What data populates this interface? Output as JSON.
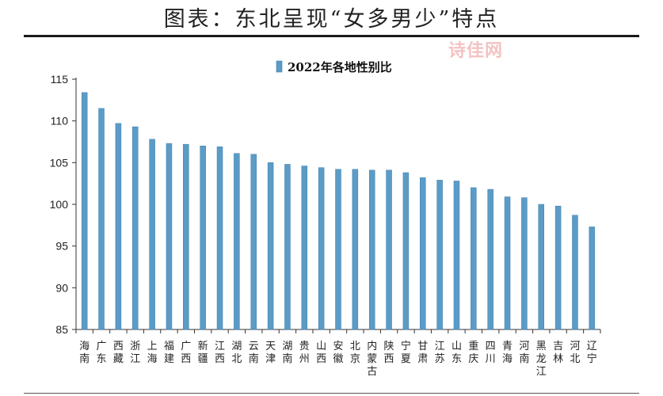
{
  "page": {
    "title": "图表：东北呈现“女多男少”特点",
    "watermark": "诗佳网"
  },
  "colors": {
    "bar": "#5b9cc7",
    "bar_edge": "#3f7fae",
    "axis": "#333333"
  },
  "chart_data": {
    "type": "bar",
    "title": "",
    "xlabel": "",
    "ylabel": "",
    "ylim": [
      85,
      115
    ],
    "yticks": [
      85,
      90,
      95,
      100,
      105,
      110,
      115
    ],
    "legend": {
      "label": "2022年各地性别比",
      "position": "top"
    },
    "categories": [
      "海南",
      "广东",
      "西藏",
      "浙江",
      "上海",
      "福建",
      "广西",
      "新疆",
      "江西",
      "湖北",
      "云南",
      "天津",
      "湖南",
      "贵州",
      "山西",
      "安徽",
      "北京",
      "内蒙古",
      "陕西",
      "宁夏",
      "甘肃",
      "江苏",
      "山东",
      "重庆",
      "四川",
      "青海",
      "河南",
      "黑龙江",
      "吉林",
      "河北",
      "辽宁"
    ],
    "series": [
      {
        "name": "2022年各地性别比",
        "values": [
          113.4,
          111.5,
          109.7,
          109.3,
          107.8,
          107.3,
          107.2,
          107.0,
          106.9,
          106.1,
          106.0,
          105.0,
          104.8,
          104.6,
          104.4,
          104.2,
          104.2,
          104.1,
          104.1,
          103.8,
          103.2,
          102.9,
          102.8,
          102.0,
          101.8,
          100.9,
          100.8,
          100.0,
          99.8,
          98.7,
          97.3
        ]
      }
    ]
  }
}
